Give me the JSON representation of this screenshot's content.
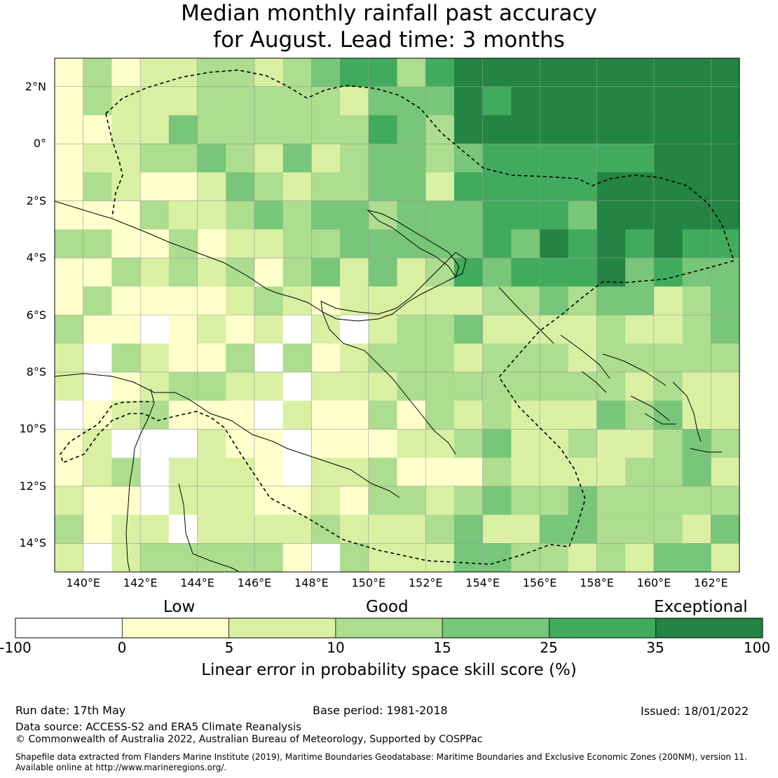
{
  "title": {
    "line1": "Median monthly rainfall past accuracy",
    "line2": "for August. Lead time: 3 months"
  },
  "map": {
    "lat_labels": [
      "2°N",
      "0°",
      "2°S",
      "4°S",
      "6°S",
      "8°S",
      "10°S",
      "12°S",
      "14°S"
    ],
    "lon_labels": [
      "140°E",
      "142°E",
      "144°E",
      "146°E",
      "148°E",
      "150°E",
      "152°E",
      "154°E",
      "156°E",
      "158°E",
      "160°E",
      "162°E"
    ],
    "lat_range": [
      -15,
      3
    ],
    "lon_range": [
      139,
      163
    ],
    "grid": true,
    "eez_boundary": "dashed"
  },
  "colorbar": {
    "categories": [
      "Low",
      "Good",
      "Exceptional"
    ],
    "ticks": [
      "-100",
      "0",
      "5",
      "10",
      "15",
      "25",
      "35",
      "100"
    ],
    "colors": [
      "#ffffff",
      "#ffffcc",
      "#d9f0a3",
      "#addd8e",
      "#78c679",
      "#41ab5d",
      "#238443"
    ],
    "label": "Linear error in probability space skill score (%)"
  },
  "footer": {
    "run_date": "Run date: 17th May",
    "base_period": "Base period: 1981-2018",
    "issued": "Issued: 18/01/2022",
    "data_source": "Data source: ACCESS-S2 and ERA5 Climate Reanalysis",
    "copyright": "© Commonwealth of Australia 2022, Australian Bureau of Meteorology, Supported by COSPPac",
    "shapefile_line1": "Shapefile data extracted from Flanders Marine Institute (2019), Maritime Boundaries Geodatabase: Maritime Boundaries and Exclusive Economic Zones (200NM), version 11.",
    "shapefile_line2": "Available online at http://www.marineregions.org/."
  }
}
